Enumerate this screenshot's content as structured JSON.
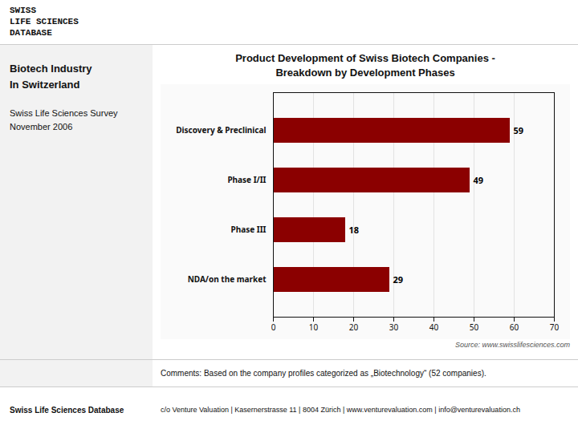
{
  "chart_data": {
    "type": "bar",
    "orientation": "horizontal",
    "title": "Product Development of Swiss Biotech Companies -\nBreakdown by Development Phases",
    "subtitle": "Swiss Life Sciences Survey\nNovember 2006",
    "annotations": [
      "SWISS",
      "LIFE SCIENCES",
      "DATABASE",
      "Biotech Industry\nIn Switzerland",
      "Comments: Based on the company profiles categorized as „Biotechnology“ (52 companies).",
      "Swiss Life Sciences Database",
      "c/o Venture Valuation  |  Kasernerstrasse 11  |  8004 Zürich  | www.venturevaluation.com  |  info@venturevaluation.ch",
      "Source: www.swisslifesciences.com"
    ],
    "categories": [
      "Discovery & Preclinical",
      "Phase I/II",
      "Phase III",
      "NDA/on the market"
    ],
    "values": [
      59,
      49,
      18,
      29
    ],
    "color": "#8B0000",
    "xlim": [
      0,
      70
    ],
    "xticks": [
      0,
      10,
      20,
      30,
      40,
      50,
      60,
      70
    ],
    "grid": true,
    "data_labels": true
  }
}
